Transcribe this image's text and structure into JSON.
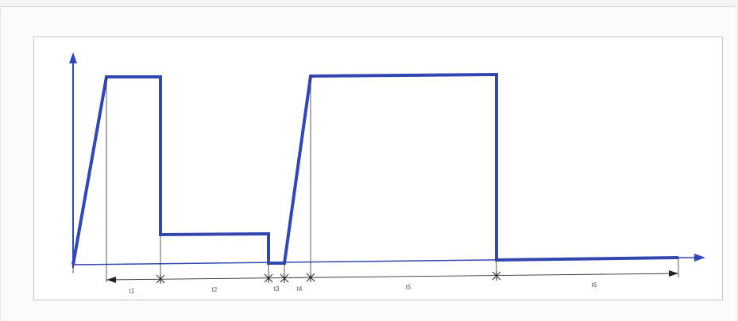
{
  "diagram": {
    "segment_labels": [
      "t1",
      "t2",
      "t3",
      "t4",
      "t5",
      "t6"
    ],
    "colors": {
      "signal": "#3347b0",
      "axis": "#3347b0",
      "dimension_lines": "#333333"
    }
  }
}
